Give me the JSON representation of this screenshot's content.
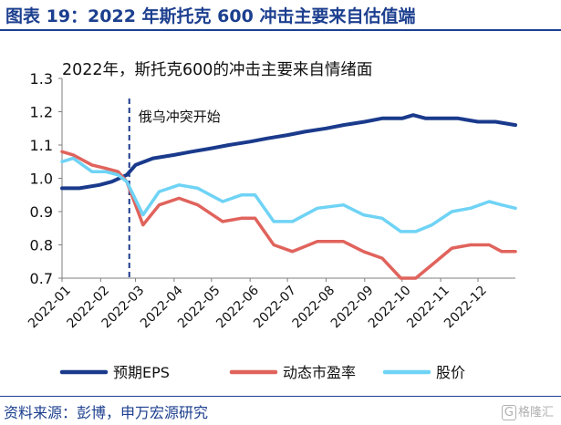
{
  "figure": {
    "title": "图表 19：2022 年斯托克 600 冲击主要来自估值端",
    "source": "资料来源：彭博，申万宏源研究",
    "watermark_mark": "G",
    "watermark": "格隆汇"
  },
  "colors": {
    "eps": "#1a3a8c",
    "pe": "#e0635c",
    "price": "#6fd3f5",
    "title_blue": "#1c3f8f",
    "axis": "#7f7f7f"
  },
  "chart_data": {
    "type": "line",
    "title": "2022年，斯托克600的冲击主要来自情绪面",
    "ylim": [
      0.7,
      1.3
    ],
    "yticks": [
      "0.7",
      "0.8",
      "0.9",
      "1.0",
      "1.1",
      "1.2",
      "1.3"
    ],
    "xlim": [
      "2022-01-01",
      "2022-12-31"
    ],
    "xticks": [
      "2022-01",
      "2022-02",
      "2022-03",
      "2022-04",
      "2022-05",
      "2022-06",
      "2022-07",
      "2022-08",
      "2022-09",
      "2022-10",
      "2022-11",
      "2022-12"
    ],
    "legend_position": "bottom",
    "grid": false,
    "annotation": {
      "text": "俄乌冲突开始",
      "x": "2022-02-24"
    },
    "series": [
      {
        "name": "预期EPS",
        "color": "#1a3a8c",
        "points": [
          [
            "2022-01-01",
            0.97
          ],
          [
            "2022-01-15",
            0.97
          ],
          [
            "2022-01-31",
            0.98
          ],
          [
            "2022-02-10",
            0.99
          ],
          [
            "2022-02-22",
            1.01
          ],
          [
            "2022-03-01",
            1.04
          ],
          [
            "2022-03-15",
            1.06
          ],
          [
            "2022-04-01",
            1.07
          ],
          [
            "2022-04-15",
            1.08
          ],
          [
            "2022-05-01",
            1.09
          ],
          [
            "2022-05-15",
            1.1
          ],
          [
            "2022-06-01",
            1.11
          ],
          [
            "2022-06-15",
            1.12
          ],
          [
            "2022-07-01",
            1.13
          ],
          [
            "2022-07-15",
            1.14
          ],
          [
            "2022-08-01",
            1.15
          ],
          [
            "2022-08-15",
            1.16
          ],
          [
            "2022-09-01",
            1.17
          ],
          [
            "2022-09-15",
            1.18
          ],
          [
            "2022-10-01",
            1.18
          ],
          [
            "2022-10-10",
            1.19
          ],
          [
            "2022-10-20",
            1.18
          ],
          [
            "2022-11-01",
            1.18
          ],
          [
            "2022-11-15",
            1.18
          ],
          [
            "2022-12-01",
            1.17
          ],
          [
            "2022-12-15",
            1.17
          ],
          [
            "2022-12-31",
            1.16
          ]
        ]
      },
      {
        "name": "动态市盈率",
        "color": "#e0635c",
        "points": [
          [
            "2022-01-01",
            1.08
          ],
          [
            "2022-01-10",
            1.07
          ],
          [
            "2022-01-25",
            1.04
          ],
          [
            "2022-02-05",
            1.03
          ],
          [
            "2022-02-15",
            1.02
          ],
          [
            "2022-02-22",
            0.99
          ],
          [
            "2022-03-07",
            0.86
          ],
          [
            "2022-03-20",
            0.92
          ],
          [
            "2022-04-05",
            0.94
          ],
          [
            "2022-04-20",
            0.92
          ],
          [
            "2022-05-10",
            0.87
          ],
          [
            "2022-05-25",
            0.88
          ],
          [
            "2022-06-05",
            0.88
          ],
          [
            "2022-06-20",
            0.8
          ],
          [
            "2022-07-05",
            0.78
          ],
          [
            "2022-07-25",
            0.81
          ],
          [
            "2022-08-15",
            0.81
          ],
          [
            "2022-08-31",
            0.78
          ],
          [
            "2022-09-15",
            0.76
          ],
          [
            "2022-09-30",
            0.7
          ],
          [
            "2022-10-12",
            0.7
          ],
          [
            "2022-10-25",
            0.74
          ],
          [
            "2022-11-10",
            0.79
          ],
          [
            "2022-11-25",
            0.8
          ],
          [
            "2022-12-10",
            0.8
          ],
          [
            "2022-12-20",
            0.78
          ],
          [
            "2022-12-31",
            0.78
          ]
        ]
      },
      {
        "name": "股价",
        "color": "#6fd3f5",
        "points": [
          [
            "2022-01-01",
            1.05
          ],
          [
            "2022-01-10",
            1.06
          ],
          [
            "2022-01-25",
            1.02
          ],
          [
            "2022-02-05",
            1.02
          ],
          [
            "2022-02-15",
            1.01
          ],
          [
            "2022-02-22",
            0.99
          ],
          [
            "2022-03-07",
            0.89
          ],
          [
            "2022-03-20",
            0.96
          ],
          [
            "2022-04-05",
            0.98
          ],
          [
            "2022-04-20",
            0.97
          ],
          [
            "2022-05-10",
            0.93
          ],
          [
            "2022-05-25",
            0.95
          ],
          [
            "2022-06-05",
            0.95
          ],
          [
            "2022-06-20",
            0.87
          ],
          [
            "2022-07-05",
            0.87
          ],
          [
            "2022-07-25",
            0.91
          ],
          [
            "2022-08-15",
            0.92
          ],
          [
            "2022-08-31",
            0.89
          ],
          [
            "2022-09-15",
            0.88
          ],
          [
            "2022-09-30",
            0.84
          ],
          [
            "2022-10-12",
            0.84
          ],
          [
            "2022-10-25",
            0.86
          ],
          [
            "2022-11-10",
            0.9
          ],
          [
            "2022-11-25",
            0.91
          ],
          [
            "2022-12-10",
            0.93
          ],
          [
            "2022-12-20",
            0.92
          ],
          [
            "2022-12-31",
            0.91
          ]
        ]
      }
    ]
  }
}
